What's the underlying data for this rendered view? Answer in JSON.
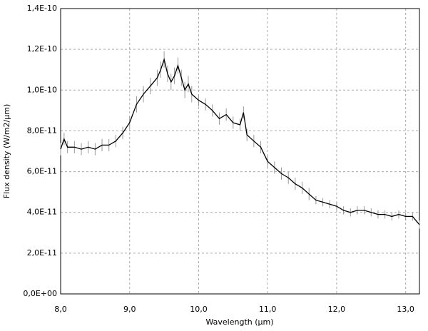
{
  "chart_data": {
    "type": "line",
    "x_label": "Wavelength (µm)",
    "y_label": "Flux density (W/m2/µm)",
    "x": [
      8.0,
      8.05,
      8.1,
      8.2,
      8.3,
      8.4,
      8.5,
      8.6,
      8.7,
      8.8,
      8.9,
      9.0,
      9.1,
      9.2,
      9.3,
      9.4,
      9.45,
      9.5,
      9.55,
      9.6,
      9.65,
      9.7,
      9.75,
      9.8,
      9.85,
      9.9,
      10.0,
      10.1,
      10.2,
      10.3,
      10.4,
      10.5,
      10.6,
      10.65,
      10.7,
      10.8,
      10.9,
      11.0,
      11.1,
      11.2,
      11.3,
      11.4,
      11.5,
      11.6,
      11.7,
      11.8,
      11.9,
      12.0,
      12.1,
      12.2,
      12.3,
      12.4,
      12.5,
      12.6,
      12.7,
      12.8,
      12.9,
      13.0,
      13.1,
      13.2
    ],
    "values": [
      7.1e-11,
      7.6e-11,
      7.2e-11,
      7.2e-11,
      7.1e-11,
      7.2e-11,
      7.1e-11,
      7.3e-11,
      7.3e-11,
      7.5e-11,
      7.9e-11,
      8.4e-11,
      9.3e-11,
      9.8e-11,
      1.02e-10,
      1.06e-10,
      1.1e-10,
      1.15e-10,
      1.08e-10,
      1.04e-10,
      1.07e-10,
      1.12e-10,
      1.06e-10,
      1e-10,
      1.03e-10,
      9.8e-11,
      9.5e-11,
      9.3e-11,
      9e-11,
      8.6e-11,
      8.8e-11,
      8.4e-11,
      8.3e-11,
      8.9e-11,
      7.8e-11,
      7.5e-11,
      7.2e-11,
      6.5e-11,
      6.2e-11,
      5.9e-11,
      5.7e-11,
      5.4e-11,
      5.2e-11,
      4.9e-11,
      4.6e-11,
      4.5e-11,
      4.4e-11,
      4.3e-11,
      4.1e-11,
      4e-11,
      4.1e-11,
      4.1e-11,
      4e-11,
      3.9e-11,
      3.9e-11,
      3.8e-11,
      3.9e-11,
      3.8e-11,
      3.8e-11,
      3.4e-11
    ],
    "errors": [
      3e-12,
      3e-12,
      3e-12,
      3e-12,
      3e-12,
      3e-12,
      3e-12,
      3e-12,
      3e-12,
      3e-12,
      3e-12,
      3e-12,
      4e-12,
      4e-12,
      4e-12,
      4e-12,
      4e-12,
      4e-12,
      4e-12,
      4e-12,
      4e-12,
      4e-12,
      4e-12,
      4e-12,
      4e-12,
      4e-12,
      3e-12,
      3e-12,
      3e-12,
      3e-12,
      3e-12,
      3e-12,
      3e-12,
      3e-12,
      3e-12,
      3e-12,
      3e-12,
      3e-12,
      3e-12,
      3e-12,
      3e-12,
      3e-12,
      3e-12,
      3e-12,
      2e-12,
      2e-12,
      2e-12,
      2e-12,
      2e-12,
      2e-12,
      2e-12,
      2e-12,
      2e-12,
      2e-12,
      2e-12,
      2e-12,
      2e-12,
      2e-12,
      2e-12,
      2e-12
    ],
    "color": "#000000",
    "error_color": "#999999",
    "xlim": [
      8.0,
      13.2
    ],
    "ylim": [
      0,
      1.4e-10
    ],
    "xticks": [
      {
        "value": 8,
        "label": "8,0"
      },
      {
        "value": 9,
        "label": "9,0"
      },
      {
        "value": 10,
        "label": "10,0"
      },
      {
        "value": 11,
        "label": "11,0"
      },
      {
        "value": 12,
        "label": "12,0"
      },
      {
        "value": 13,
        "label": "13,0"
      }
    ],
    "yticks": [
      {
        "value": 0,
        "label": "0,0E+00"
      },
      {
        "value": 2e-11,
        "label": "2,0E-11"
      },
      {
        "value": 4e-11,
        "label": "4,0E-11"
      },
      {
        "value": 6e-11,
        "label": "6,0E-11"
      },
      {
        "value": 8e-11,
        "label": "8,0E-11"
      },
      {
        "value": 1e-10,
        "label": "1,0E-10"
      },
      {
        "value": 1.2e-10,
        "label": "1,2E-10"
      },
      {
        "value": 1.4e-10,
        "label": "1,4E-10"
      }
    ],
    "grid": true
  }
}
